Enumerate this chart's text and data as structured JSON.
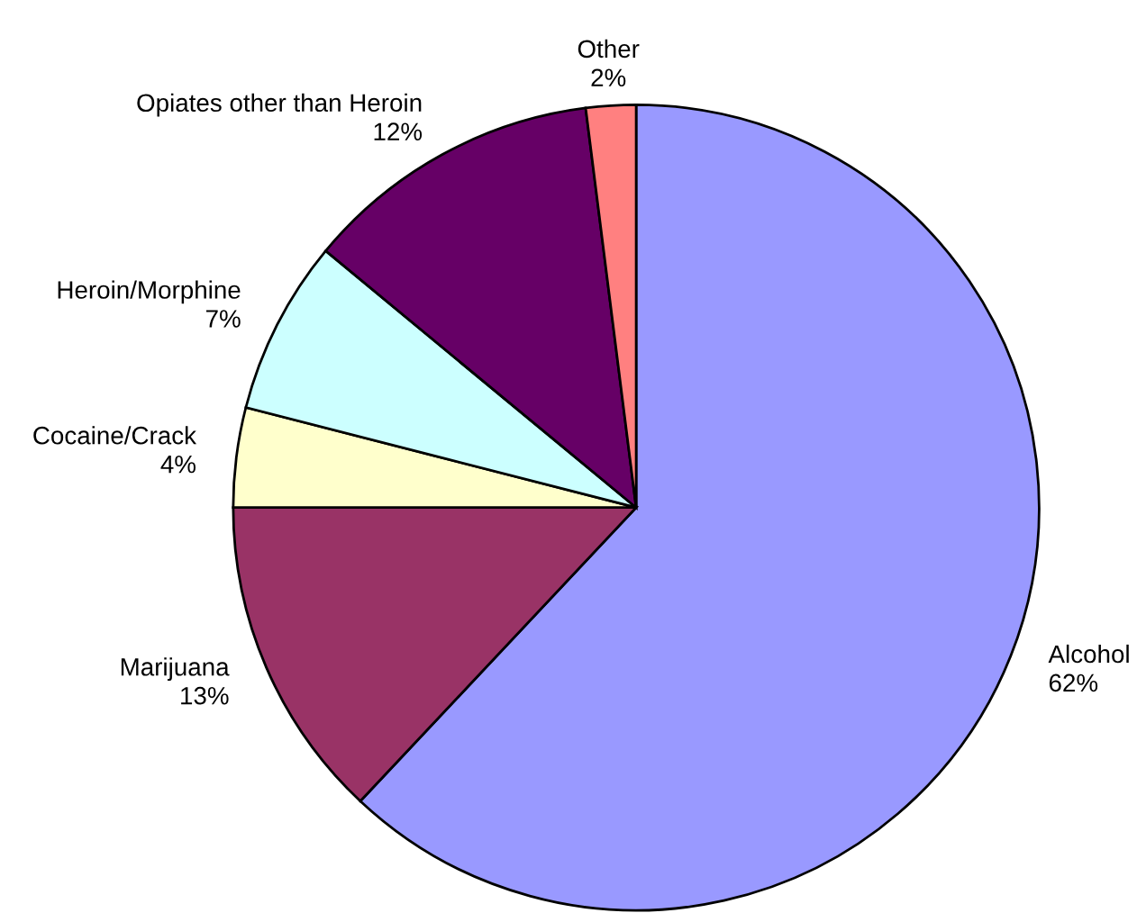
{
  "chart_data": {
    "type": "pie",
    "categories": [
      "Alcohol",
      "Marijuana",
      "Cocaine/Crack",
      "Heroin/Morphine",
      "Opiates other than Heroin",
      "Other"
    ],
    "values": [
      62,
      13,
      4,
      7,
      12,
      2
    ],
    "value_labels": [
      "62%",
      "13%",
      "4%",
      "7%",
      "12%",
      "2%"
    ],
    "colors": [
      "#9999ff",
      "#993366",
      "#ffffcc",
      "#ccffff",
      "#660066",
      "#ff8080"
    ],
    "legend": false
  }
}
